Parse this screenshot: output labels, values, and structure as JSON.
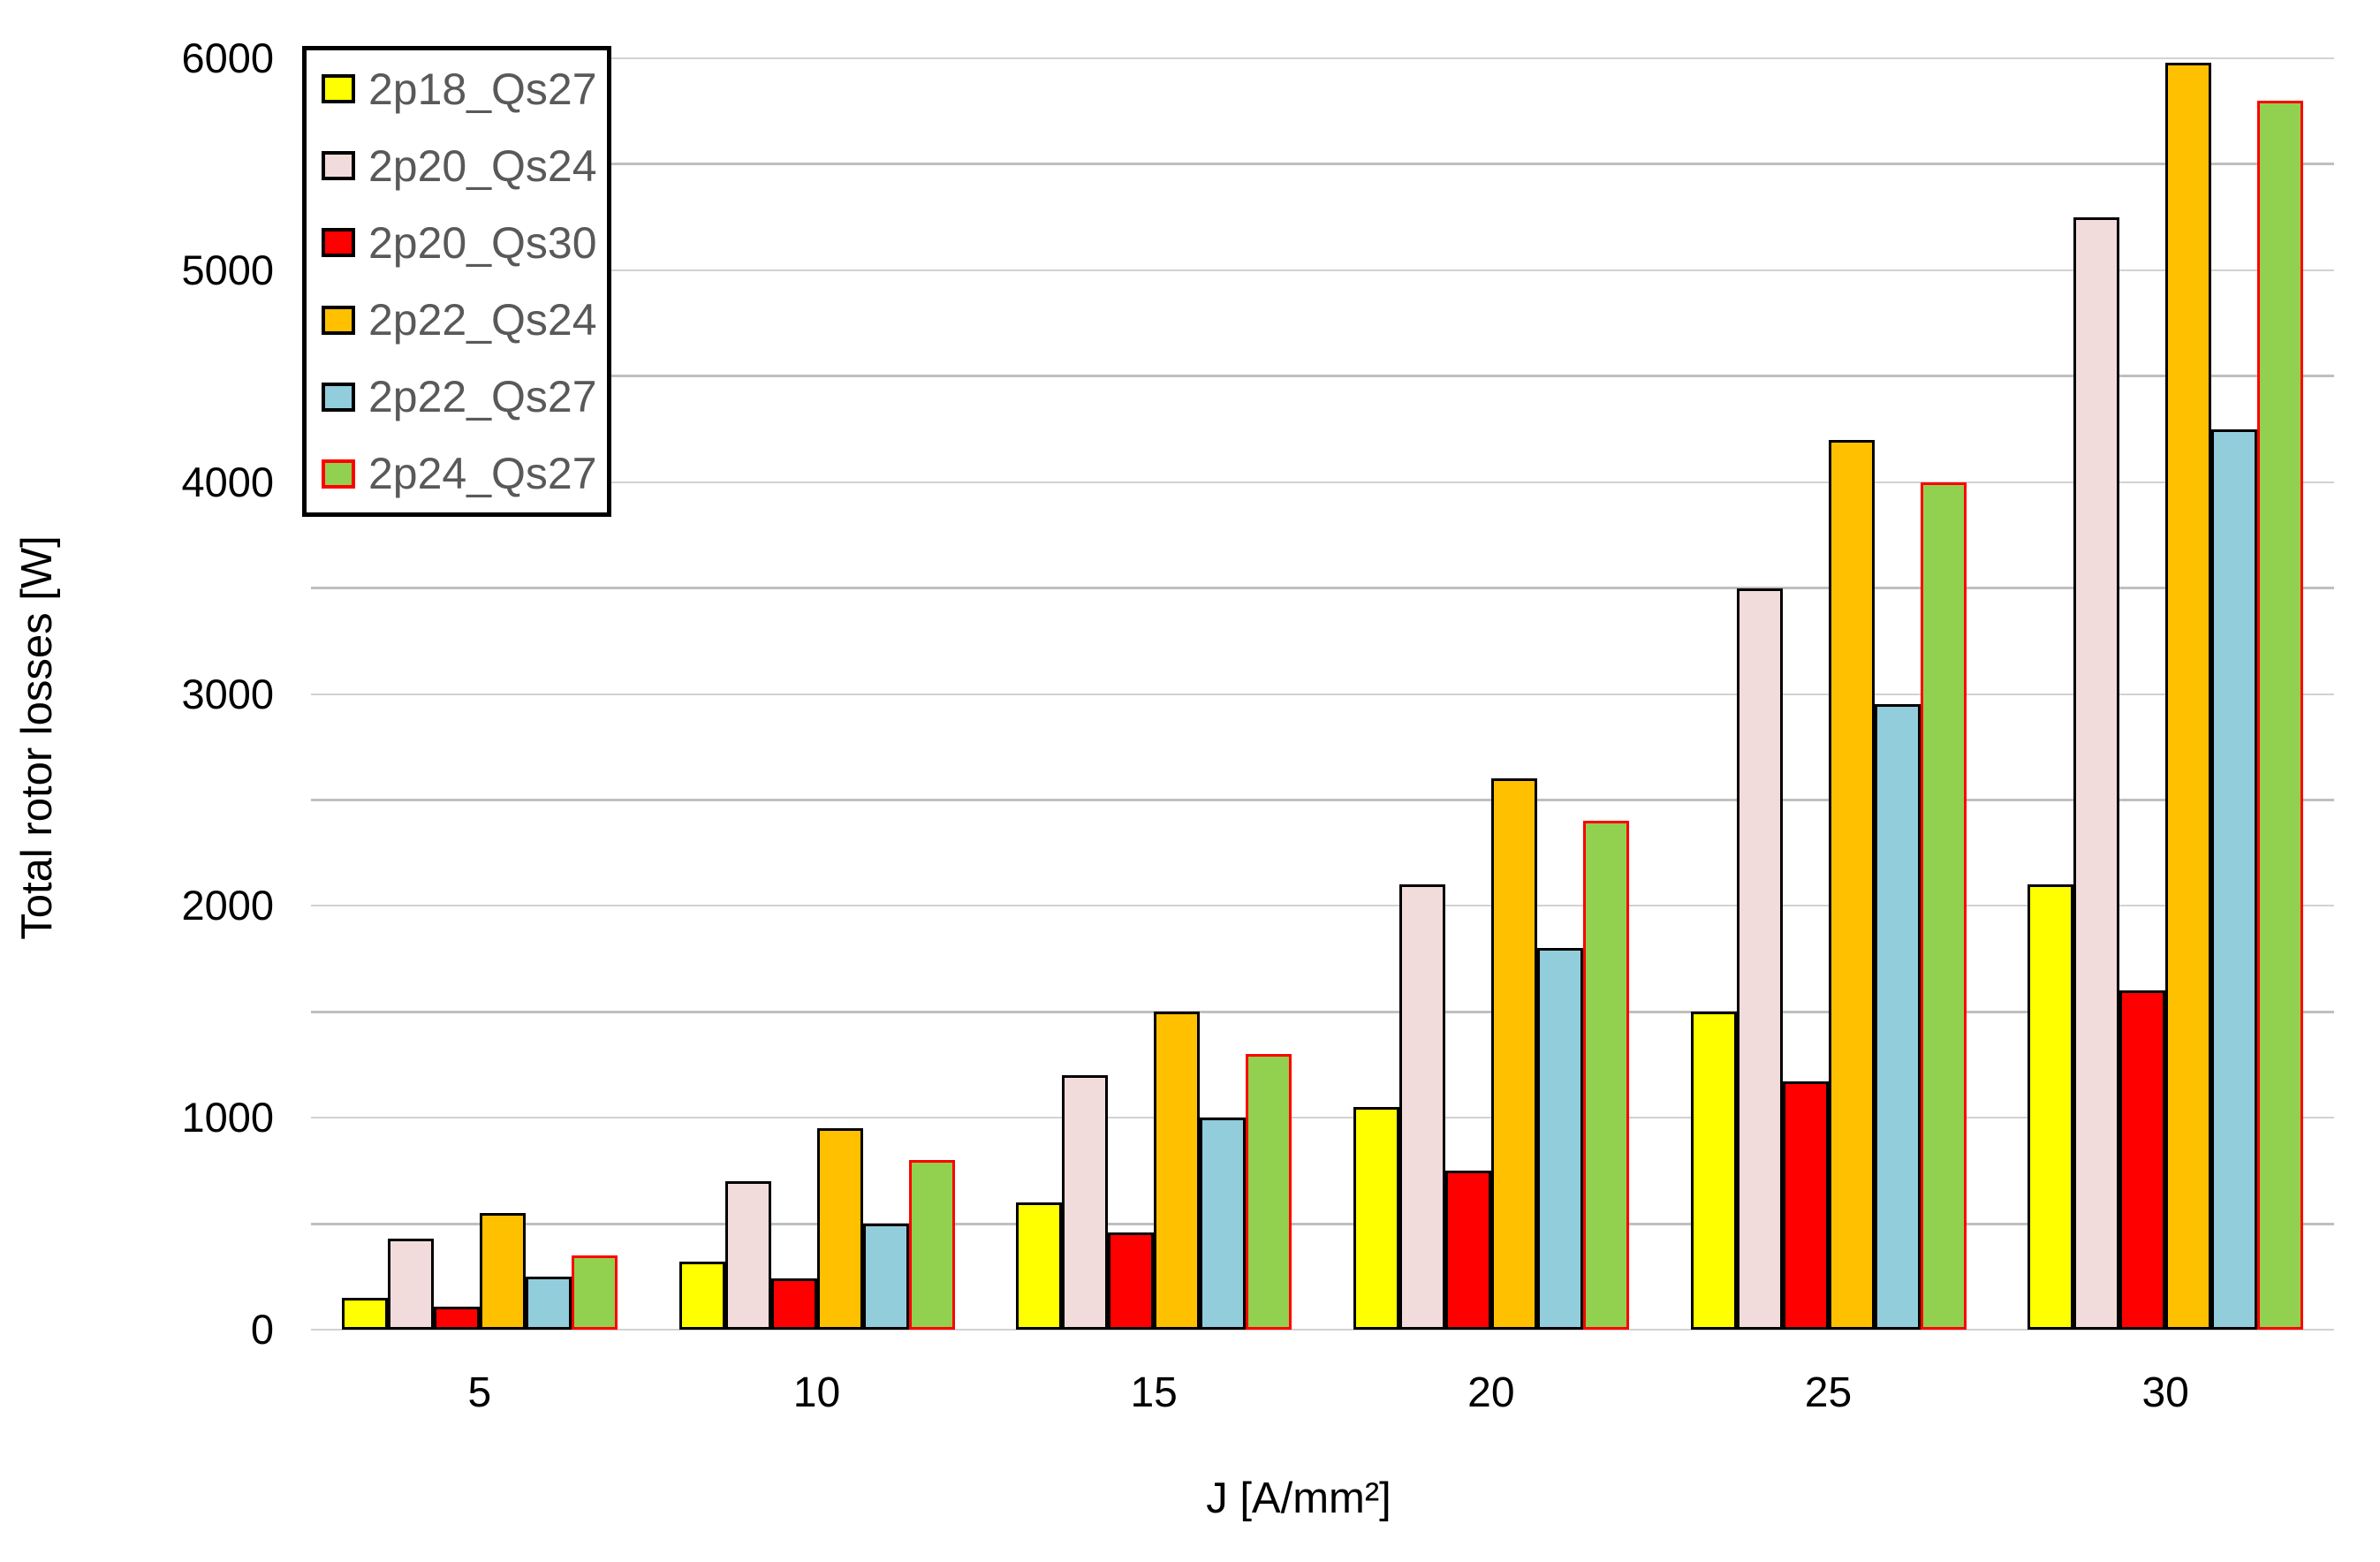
{
  "chart_data": {
    "type": "bar",
    "title": "",
    "xlabel": "J [A/mm²]",
    "ylabel": "Total rotor losses  [W]",
    "categories": [
      "5",
      "10",
      "15",
      "20",
      "25",
      "30"
    ],
    "series": [
      {
        "name": "2p18_Qs27",
        "fill": "#FFFF00",
        "border": "#000000",
        "values": [
          150,
          320,
          600,
          1050,
          1500,
          2100
        ]
      },
      {
        "name": "2p20_Qs24",
        "fill": "#F2DCDB",
        "border": "#000000",
        "values": [
          430,
          700,
          1200,
          2100,
          3500,
          5250
        ]
      },
      {
        "name": "2p20_Qs30",
        "fill": "#FF0000",
        "border": "#000000",
        "values": [
          110,
          240,
          460,
          750,
          1170,
          1600
        ]
      },
      {
        "name": "2p22_Qs24",
        "fill": "#FFC000",
        "border": "#000000",
        "values": [
          550,
          950,
          1500,
          2600,
          4200,
          5980
        ]
      },
      {
        "name": "2p22_Qs27",
        "fill": "#92CDDC",
        "border": "#000000",
        "values": [
          250,
          500,
          1000,
          1800,
          2950,
          4250
        ]
      },
      {
        "name": "2p24_Qs27",
        "fill": "#92D050",
        "border": "#FF0000",
        "values": [
          350,
          800,
          1300,
          2400,
          4000,
          5800
        ]
      }
    ],
    "ylim": [
      0,
      6000
    ],
    "ytick_step": 1000,
    "ytick_labels": [
      "0",
      "1000",
      "2000",
      "3000",
      "4000",
      "5000",
      "6000"
    ],
    "grid_step": 500,
    "grid": true,
    "legend_position": "top-left",
    "colors": {
      "legend_text": "#595959",
      "axis_text": "#000000",
      "major_gridline": "#d2d2d2",
      "minor_gridline": "#bfbfbf",
      "background": "#ffffff"
    }
  }
}
